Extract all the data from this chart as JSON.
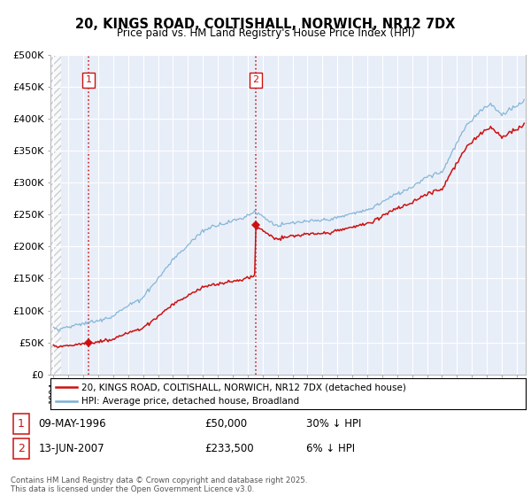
{
  "title_line1": "20, KINGS ROAD, COLTISHALL, NORWICH, NR12 7DX",
  "title_line2": "Price paid vs. HM Land Registry's House Price Index (HPI)",
  "ylim": [
    0,
    500000
  ],
  "yticks": [
    0,
    50000,
    100000,
    150000,
    200000,
    250000,
    300000,
    350000,
    400000,
    450000,
    500000
  ],
  "ytick_labels": [
    "£0",
    "£50K",
    "£100K",
    "£150K",
    "£200K",
    "£250K",
    "£300K",
    "£350K",
    "£400K",
    "£450K",
    "£500K"
  ],
  "hpi_color": "#7ab0d4",
  "price_color": "#cc1111",
  "sale1_year": 1996.36,
  "sale1_price": 50000,
  "sale2_year": 2007.53,
  "sale2_price": 233500,
  "legend_label1": "20, KINGS ROAD, COLTISHALL, NORWICH, NR12 7DX (detached house)",
  "legend_label2": "HPI: Average price, detached house, Broadland",
  "footnote": "Contains HM Land Registry data © Crown copyright and database right 2025.\nThis data is licensed under the Open Government Licence v3.0.",
  "background_color": "#e8eef8",
  "hatch_region_end": 1994.5,
  "xlim_start": 1993.8,
  "xlim_end": 2025.6
}
